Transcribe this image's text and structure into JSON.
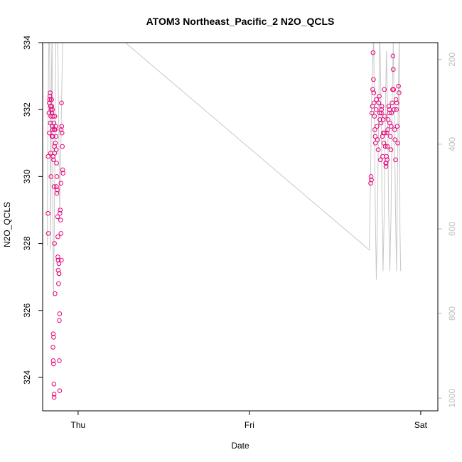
{
  "chart_data": {
    "type": "scatter",
    "title": "ATOM3 Northeast_Pacific_2 N2O_QCLS",
    "xlabel": "Date",
    "ylabel": "N2O_QCLS",
    "x_ticks": [
      {
        "label": "Thu",
        "value": 0
      },
      {
        "label": "Fri",
        "value": 1
      },
      {
        "label": "Sat",
        "value": 2
      }
    ],
    "xlim": [
      -0.207,
      2.1
    ],
    "ylim": [
      323.0,
      334.0
    ],
    "y_ticks": [
      324,
      326,
      328,
      330,
      332,
      334
    ],
    "right_axis": {
      "ylim": [
        1030,
        160
      ],
      "ticks": [
        200,
        400,
        600,
        800,
        1000
      ],
      "color": "#bebebe"
    },
    "point_color": "#e8007a",
    "series": [
      {
        "values": [
          [
            -0.175,
            330.6
          ],
          [
            -0.176,
            328.9
          ],
          [
            -0.174,
            328.3
          ],
          [
            -0.17,
            331.9
          ],
          [
            -0.168,
            332.2
          ],
          [
            -0.165,
            332.4
          ],
          [
            -0.163,
            332.5
          ],
          [
            -0.166,
            332.3
          ],
          [
            -0.161,
            332.1
          ],
          [
            -0.159,
            331.8
          ],
          [
            -0.162,
            331.6
          ],
          [
            -0.168,
            331.3
          ],
          [
            -0.158,
            332.0
          ],
          [
            -0.155,
            332.3
          ],
          [
            -0.153,
            331.9
          ],
          [
            -0.15,
            331.5
          ],
          [
            -0.148,
            331.2
          ],
          [
            -0.146,
            330.6
          ],
          [
            -0.16,
            330.7
          ],
          [
            -0.158,
            330.0
          ],
          [
            -0.152,
            331.2
          ],
          [
            -0.148,
            331.4
          ],
          [
            -0.143,
            330.5
          ],
          [
            -0.14,
            329.7
          ],
          [
            -0.138,
            330.9
          ],
          [
            -0.136,
            331.8
          ],
          [
            -0.134,
            331.4
          ],
          [
            -0.133,
            331.0
          ],
          [
            -0.131,
            331.5
          ],
          [
            -0.129,
            331.2
          ],
          [
            -0.128,
            330.8
          ],
          [
            -0.126,
            330.4
          ],
          [
            -0.124,
            330.0
          ],
          [
            -0.122,
            329.6
          ],
          [
            -0.12,
            328.8
          ],
          [
            -0.118,
            327.6
          ],
          [
            -0.116,
            327.2
          ],
          [
            -0.114,
            326.8
          ],
          [
            -0.112,
            327.4
          ],
          [
            -0.11,
            325.7
          ],
          [
            -0.108,
            325.9
          ],
          [
            -0.106,
            328.9
          ],
          [
            -0.104,
            329.0
          ],
          [
            -0.102,
            328.7
          ],
          [
            -0.1,
            328.3
          ],
          [
            -0.098,
            327.5
          ],
          [
            -0.096,
            331.5
          ],
          [
            -0.094,
            331.3
          ],
          [
            -0.092,
            330.9
          ],
          [
            -0.09,
            330.2
          ],
          [
            -0.088,
            330.1
          ],
          [
            -0.1,
            329.8
          ],
          [
            -0.097,
            332.2
          ],
          [
            -0.099,
            331.4
          ],
          [
            -0.136,
            330.7
          ],
          [
            -0.138,
            331.4
          ],
          [
            -0.145,
            325.3
          ],
          [
            -0.143,
            325.2
          ],
          [
            -0.147,
            324.9
          ],
          [
            -0.145,
            324.5
          ],
          [
            -0.143,
            324.4
          ],
          [
            -0.141,
            323.8
          ],
          [
            -0.14,
            323.5
          ],
          [
            -0.14,
            323.4
          ],
          [
            -0.11,
            324.5
          ],
          [
            -0.108,
            323.6
          ],
          [
            -0.135,
            326.5
          ],
          [
            -0.138,
            328.0
          ],
          [
            -0.118,
            328.2
          ],
          [
            -0.116,
            327.5
          ],
          [
            -0.112,
            327.1
          ],
          [
            -0.111,
            327.1
          ],
          [
            -0.126,
            329.7
          ],
          [
            -0.124,
            329.5
          ],
          [
            -0.156,
            332.3
          ],
          [
            -0.154,
            332.1
          ],
          [
            -0.15,
            332.0
          ],
          [
            -0.147,
            331.8
          ],
          [
            -0.141,
            331.6
          ],
          [
            1.71,
            330.0
          ],
          [
            1.712,
            329.9
          ],
          [
            1.708,
            329.8
          ],
          [
            1.715,
            331.9
          ],
          [
            1.718,
            332.1
          ],
          [
            1.72,
            332.6
          ],
          [
            1.722,
            333.7
          ],
          [
            1.724,
            332.9
          ],
          [
            1.726,
            332.5
          ],
          [
            1.728,
            332.2
          ],
          [
            1.73,
            331.8
          ],
          [
            1.732,
            331.4
          ],
          [
            1.734,
            331.2
          ],
          [
            1.736,
            331.0
          ],
          [
            1.74,
            332.0
          ],
          [
            1.742,
            332.3
          ],
          [
            1.745,
            331.5
          ],
          [
            1.748,
            331.1
          ],
          [
            1.752,
            330.8
          ],
          [
            1.755,
            332.2
          ],
          [
            1.758,
            332.4
          ],
          [
            1.76,
            331.9
          ],
          [
            1.762,
            331.7
          ],
          [
            1.765,
            330.5
          ],
          [
            1.768,
            331.6
          ],
          [
            1.77,
            331.9
          ],
          [
            1.773,
            332.1
          ],
          [
            1.776,
            331.2
          ],
          [
            1.778,
            330.6
          ],
          [
            1.782,
            331.3
          ],
          [
            1.785,
            331.0
          ],
          [
            1.788,
            332.6
          ],
          [
            1.79,
            331.8
          ],
          [
            1.793,
            330.9
          ],
          [
            1.796,
            330.4
          ],
          [
            1.798,
            330.4
          ],
          [
            1.8,
            330.6
          ],
          [
            1.803,
            331.3
          ],
          [
            1.806,
            330.9
          ],
          [
            1.808,
            331.4
          ],
          [
            1.81,
            331.7
          ],
          [
            1.813,
            332.1
          ],
          [
            1.816,
            331.9
          ],
          [
            1.818,
            332.0
          ],
          [
            1.82,
            331.6
          ],
          [
            1.823,
            331.2
          ],
          [
            1.826,
            330.8
          ],
          [
            1.828,
            331.5
          ],
          [
            1.83,
            331.9
          ],
          [
            1.833,
            332.2
          ],
          [
            1.836,
            332.6
          ],
          [
            1.838,
            333.6
          ],
          [
            1.84,
            333.2
          ],
          [
            1.842,
            332.6
          ],
          [
            1.845,
            332.0
          ],
          [
            1.848,
            331.4
          ],
          [
            1.85,
            331.1
          ],
          [
            1.853,
            330.5
          ],
          [
            1.856,
            332.3
          ],
          [
            1.858,
            332.0
          ],
          [
            1.86,
            332.2
          ],
          [
            1.863,
            331.5
          ],
          [
            1.866,
            331.0
          ],
          [
            1.87,
            332.7
          ],
          [
            1.873,
            332.5
          ],
          [
            1.804,
            330.5
          ],
          [
            1.797,
            330.3
          ],
          [
            1.789,
            331.3
          ],
          [
            1.781,
            331.7
          ],
          [
            1.771,
            332.0
          ]
        ]
      }
    ],
    "line_series": [
      {
        "color": "#c8c8c8",
        "axis": "right",
        "values": [
          [
            -0.18,
            640
          ],
          [
            -0.177,
            400
          ],
          [
            -0.172,
            200
          ],
          [
            -0.168,
            90
          ],
          [
            -0.164,
            300
          ],
          [
            -0.16,
            650
          ],
          [
            -0.156,
            260
          ],
          [
            -0.152,
            120
          ],
          [
            -0.148,
            500
          ],
          [
            -0.144,
            760
          ],
          [
            -0.14,
            650
          ],
          [
            -0.136,
            430
          ],
          [
            -0.131,
            180
          ],
          [
            -0.126,
            100
          ],
          [
            -0.12,
            120
          ],
          [
            -0.114,
            320
          ],
          [
            -0.108,
            560
          ],
          [
            -0.103,
            460
          ],
          [
            -0.097,
            310
          ],
          [
            -0.092,
            200
          ],
          [
            -0.087,
            80
          ],
          [
            0.16,
            120
          ],
          [
            1.7,
            650
          ],
          [
            1.707,
            480
          ],
          [
            1.713,
            300
          ],
          [
            1.72,
            210
          ],
          [
            1.725,
            140
          ],
          [
            1.73,
            310
          ],
          [
            1.735,
            560
          ],
          [
            1.741,
            720
          ],
          [
            1.748,
            550
          ],
          [
            1.755,
            300
          ],
          [
            1.761,
            140
          ],
          [
            1.768,
            290
          ],
          [
            1.774,
            520
          ],
          [
            1.78,
            700
          ],
          [
            1.787,
            560
          ],
          [
            1.794,
            320
          ],
          [
            1.8,
            180
          ],
          [
            1.807,
            330
          ],
          [
            1.813,
            560
          ],
          [
            1.82,
            700
          ],
          [
            1.827,
            560
          ],
          [
            1.833,
            300
          ],
          [
            1.84,
            160
          ],
          [
            1.846,
            330
          ],
          [
            1.853,
            560
          ],
          [
            1.859,
            700
          ],
          [
            1.864,
            500
          ],
          [
            1.87,
            250
          ],
          [
            1.875,
            140
          ],
          [
            1.879,
            600
          ],
          [
            1.883,
            700
          ]
        ]
      }
    ]
  }
}
